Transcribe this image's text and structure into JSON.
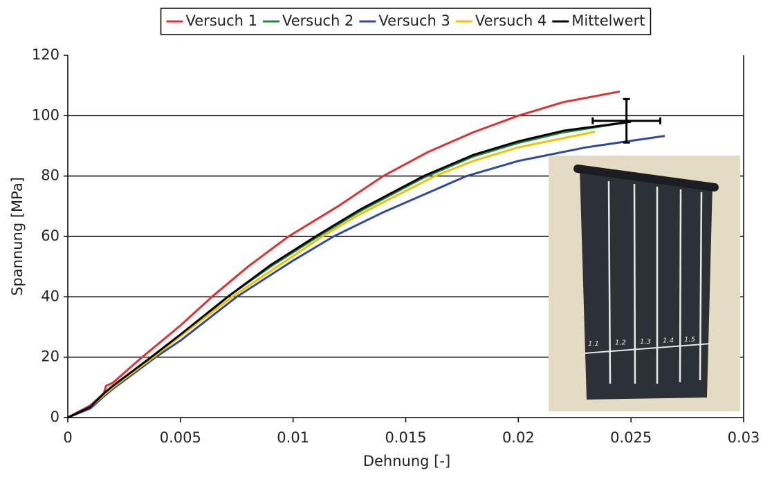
{
  "chart_data": {
    "type": "line",
    "x_label": "Dehnung [-]",
    "y_label": "Spannung [MPa]",
    "xlim": [
      0,
      0.03
    ],
    "xticks": [
      0,
      0.005,
      0.01,
      0.015,
      0.02,
      0.025,
      0.03
    ],
    "ylim": [
      0,
      120
    ],
    "yticks": [
      0,
      20,
      40,
      60,
      80,
      100,
      120
    ],
    "grid": true,
    "legend": "top",
    "series": [
      {
        "name": "Versuch 1",
        "color": "#e03030",
        "x": [
          0,
          0.001,
          0.0016,
          0.0017,
          0.002,
          0.0033,
          0.005,
          0.0064,
          0.008,
          0.0098,
          0.012,
          0.014,
          0.016,
          0.018,
          0.02,
          0.022,
          0.0245
        ],
        "values": [
          0,
          4,
          8,
          10.5,
          11.5,
          20,
          30.5,
          40,
          50,
          60,
          70,
          80,
          88,
          94.5,
          100,
          104.5,
          108
        ]
      },
      {
        "name": "Versuch 2",
        "color": "#1e8a3c",
        "x": [
          0,
          0.001,
          0.0016,
          0.002,
          0.0037,
          0.005,
          0.0071,
          0.009,
          0.011,
          0.013,
          0.0158,
          0.018,
          0.02,
          0.022,
          0.025
        ],
        "values": [
          0,
          3.5,
          7.5,
          10,
          20,
          27,
          40,
          50,
          59.5,
          68.5,
          79.5,
          86.5,
          91,
          94.5,
          98
        ]
      },
      {
        "name": "Versuch 3",
        "color": "#2e4a9e",
        "x": [
          0,
          0.001,
          0.0016,
          0.002,
          0.0039,
          0.005,
          0.0075,
          0.01,
          0.0118,
          0.014,
          0.0177,
          0.02,
          0.023,
          0.0265
        ],
        "values": [
          0,
          3,
          7,
          9.5,
          20,
          25.5,
          40,
          52,
          60,
          68,
          80,
          85,
          89.5,
          93.3
        ]
      },
      {
        "name": "Versuch 4",
        "color": "#f2c200",
        "x": [
          0,
          0.001,
          0.0016,
          0.002,
          0.0038,
          0.005,
          0.0073,
          0.009,
          0.0113,
          0.013,
          0.0163,
          0.018,
          0.02,
          0.0234
        ],
        "values": [
          0,
          3.5,
          7.5,
          10,
          20,
          27,
          40,
          48.5,
          60,
          67.5,
          80,
          85,
          89.5,
          94.7
        ]
      },
      {
        "name": "Mittelwert",
        "color": "#000000",
        "x": [
          0,
          0.001,
          0.0016,
          0.002,
          0.0037,
          0.005,
          0.0071,
          0.009,
          0.011,
          0.013,
          0.0158,
          0.018,
          0.02,
          0.022,
          0.025
        ],
        "values": [
          0,
          3.5,
          8,
          10.5,
          20,
          27.5,
          40,
          50.5,
          60,
          69,
          80,
          87,
          91.5,
          95,
          98
        ]
      }
    ],
    "error_bar": {
      "x": 0.0248,
      "y": 98.3,
      "x_err": 0.0015,
      "y_err": 7.2
    },
    "annotations": [
      "1.1",
      "1.2",
      "1.3",
      "1.4",
      "1.5"
    ]
  }
}
